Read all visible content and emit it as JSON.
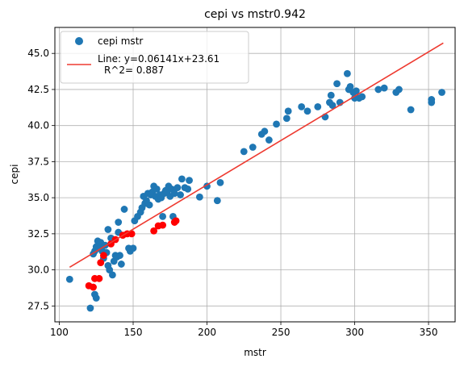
{
  "chart_data": {
    "type": "scatter",
    "title": "cepi vs mstr0.942",
    "xlabel": "mstr",
    "ylabel": "cepi",
    "xlim": [
      97,
      368
    ],
    "ylim": [
      26.4,
      46.8
    ],
    "xticks": [
      100,
      150,
      200,
      250,
      300,
      350
    ],
    "yticks": [
      27.5,
      30.0,
      32.5,
      35.0,
      37.5,
      40.0,
      42.5,
      45.0
    ],
    "xtick_labels": [
      "100",
      "150",
      "200",
      "250",
      "300",
      "350"
    ],
    "ytick_labels": [
      "27.5",
      "30.0",
      "32.5",
      "35.0",
      "37.5",
      "40.0",
      "42.5",
      "45.0"
    ],
    "grid": true,
    "legend_position": "upper-left",
    "series": [
      {
        "name": "cepi mstr",
        "kind": "scatter",
        "color": "#1f77b4",
        "points": [
          [
            107,
            29.35
          ],
          [
            121,
            27.35
          ],
          [
            124,
            28.3
          ],
          [
            125,
            28.05
          ],
          [
            123,
            31.1
          ],
          [
            124,
            31.3
          ],
          [
            125,
            31.6
          ],
          [
            126,
            32.0
          ],
          [
            127,
            31.5
          ],
          [
            128,
            31.9
          ],
          [
            129,
            31.3
          ],
          [
            130,
            30.8
          ],
          [
            131,
            31.7
          ],
          [
            132,
            31.2
          ],
          [
            133,
            32.8
          ],
          [
            133,
            30.3
          ],
          [
            134,
            30.0
          ],
          [
            135,
            32.2
          ],
          [
            136,
            29.65
          ],
          [
            137,
            30.6
          ],
          [
            138,
            31.0
          ],
          [
            139,
            30.9
          ],
          [
            140,
            32.6
          ],
          [
            140,
            33.3
          ],
          [
            141,
            31.0
          ],
          [
            142,
            30.4
          ],
          [
            144,
            34.2
          ],
          [
            147,
            31.5
          ],
          [
            148,
            31.3
          ],
          [
            150,
            31.5
          ],
          [
            151,
            33.4
          ],
          [
            153,
            33.7
          ],
          [
            155,
            34.0
          ],
          [
            156,
            34.3
          ],
          [
            157,
            35.1
          ],
          [
            158,
            34.6
          ],
          [
            159,
            34.8
          ],
          [
            160,
            35.3
          ],
          [
            161,
            34.5
          ],
          [
            162,
            35.2
          ],
          [
            163,
            35.4
          ],
          [
            164,
            35.8
          ],
          [
            165,
            35.1
          ],
          [
            166,
            35.6
          ],
          [
            167,
            34.9
          ],
          [
            168,
            35.2
          ],
          [
            169,
            35.0
          ],
          [
            170,
            33.7
          ],
          [
            171,
            35.3
          ],
          [
            172,
            35.5
          ],
          [
            173,
            35.4
          ],
          [
            174,
            35.8
          ],
          [
            175,
            35.1
          ],
          [
            176,
            35.6
          ],
          [
            177,
            33.7
          ],
          [
            178,
            35.3
          ],
          [
            180,
            35.7
          ],
          [
            182,
            35.2
          ],
          [
            183,
            36.3
          ],
          [
            185,
            35.7
          ],
          [
            187,
            35.6
          ],
          [
            188,
            36.2
          ],
          [
            195,
            35.05
          ],
          [
            200,
            35.8
          ],
          [
            207,
            34.8
          ],
          [
            209,
            36.05
          ],
          [
            225,
            38.2
          ],
          [
            231,
            38.5
          ],
          [
            237,
            39.4
          ],
          [
            239,
            39.6
          ],
          [
            242,
            39.0
          ],
          [
            247,
            40.1
          ],
          [
            254,
            40.5
          ],
          [
            255,
            41.0
          ],
          [
            264,
            41.3
          ],
          [
            268,
            41.0
          ],
          [
            275,
            41.3
          ],
          [
            280,
            40.6
          ],
          [
            283,
            41.6
          ],
          [
            284,
            42.1
          ],
          [
            285,
            41.4
          ],
          [
            288,
            42.9
          ],
          [
            290,
            41.6
          ],
          [
            295,
            43.6
          ],
          [
            296,
            42.5
          ],
          [
            297,
            42.7
          ],
          [
            299,
            42.3
          ],
          [
            300,
            41.9
          ],
          [
            301,
            42.4
          ],
          [
            303,
            41.9
          ],
          [
            305,
            42.0
          ],
          [
            316,
            42.5
          ],
          [
            320,
            42.6
          ],
          [
            328,
            42.3
          ],
          [
            330,
            42.5
          ],
          [
            338,
            41.1
          ],
          [
            352,
            41.8
          ],
          [
            352,
            41.6
          ],
          [
            359,
            42.3
          ]
        ]
      },
      {
        "name": "",
        "kind": "scatter",
        "color": "#ff0000",
        "points": [
          [
            120,
            28.9
          ],
          [
            123,
            28.8
          ],
          [
            124,
            29.4
          ],
          [
            127,
            29.4
          ],
          [
            128,
            30.5
          ],
          [
            130,
            31.0
          ],
          [
            135,
            31.8
          ],
          [
            138,
            32.1
          ],
          [
            143,
            32.4
          ],
          [
            146,
            32.5
          ],
          [
            149,
            32.5
          ],
          [
            164,
            32.7
          ],
          [
            167,
            33.05
          ],
          [
            170,
            33.1
          ],
          [
            178,
            33.3
          ],
          [
            179,
            33.4
          ]
        ]
      },
      {
        "name": "Line: y=0.06141x+23.61\n R^2= 0.887",
        "kind": "line",
        "color": "#ee3a30",
        "slope": 0.06141,
        "intercept": 23.61,
        "x_range": [
          107,
          360
        ]
      }
    ],
    "legend": [
      {
        "label": "cepi mstr",
        "marker": "circle",
        "color": "#1f77b4"
      },
      {
        "label_line1": "Line: y=0.06141x+23.61",
        "label_line2": "R^2= 0.887",
        "marker": "line",
        "color": "#ee3a30"
      }
    ]
  }
}
